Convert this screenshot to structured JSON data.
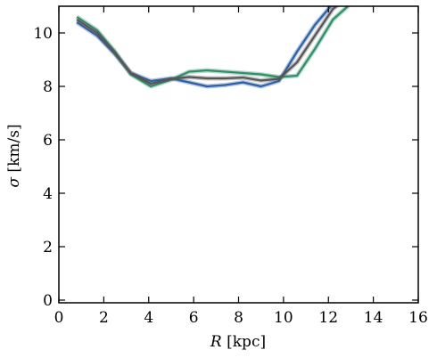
{
  "chart_data": {
    "type": "line",
    "title": "",
    "xlabel": {
      "symbol": "R",
      "unit": " [kpc]"
    },
    "ylabel": {
      "symbol": "σ",
      "unit": " [km/s]"
    },
    "xlim": [
      0,
      16
    ],
    "ylim": [
      -0.1,
      11
    ],
    "xticks": [
      0,
      2,
      4,
      6,
      8,
      10,
      12,
      14,
      16
    ],
    "yticks": [
      0,
      2,
      4,
      6,
      8,
      10
    ],
    "grid": false,
    "legend": "none",
    "series": [
      {
        "color": "#2e5fa8",
        "x": [
          0.8,
          1.7,
          2.5,
          3.2,
          4.1,
          5.0,
          5.8,
          6.6,
          7.4,
          8.2,
          9.0,
          9.8,
          10.6,
          11.4,
          12.2,
          13.0
        ],
        "y": [
          10.4,
          9.9,
          9.2,
          8.5,
          8.2,
          8.3,
          8.15,
          8.0,
          8.05,
          8.15,
          8.0,
          8.2,
          9.3,
          10.3,
          11.1,
          11.5
        ]
      },
      {
        "color": "#2f8f6a",
        "x": [
          0.8,
          1.7,
          2.5,
          3.2,
          4.1,
          5.0,
          5.8,
          6.6,
          7.4,
          8.2,
          9.0,
          9.8,
          10.6,
          11.4,
          12.2,
          13.0
        ],
        "y": [
          10.6,
          10.1,
          9.3,
          8.45,
          8.0,
          8.25,
          8.55,
          8.6,
          8.55,
          8.5,
          8.45,
          8.35,
          8.4,
          9.4,
          10.5,
          11.1
        ]
      },
      {
        "color": "#555555",
        "x": [
          0.8,
          1.7,
          2.5,
          3.2,
          4.1,
          5.0,
          5.8,
          6.6,
          7.4,
          8.2,
          9.0,
          9.8,
          10.6,
          11.4,
          12.2,
          13.0
        ],
        "y": [
          10.5,
          10.0,
          9.25,
          8.5,
          8.1,
          8.28,
          8.35,
          8.3,
          8.3,
          8.33,
          8.22,
          8.28,
          8.9,
          9.9,
          10.9,
          11.4
        ]
      }
    ]
  }
}
